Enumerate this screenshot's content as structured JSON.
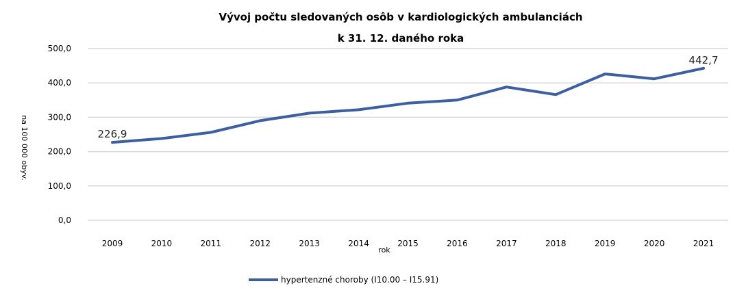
{
  "chart_data": {
    "type": "line",
    "title": [
      "Vývoj počtu sledovaných osôb v kardiologických ambulanciách",
      "k 31. 12. daného roka"
    ],
    "xlabel": "rok",
    "ylabel": "na 100 000 obyv.",
    "ylim": [
      0,
      500
    ],
    "y_ticks": [
      "0,0",
      "100,0",
      "200,0",
      "300,0",
      "400,0",
      "500,0"
    ],
    "categories": [
      "2009",
      "2010",
      "2011",
      "2012",
      "2013",
      "2014",
      "2015",
      "2016",
      "2017",
      "2018",
      "2019",
      "2020",
      "2021"
    ],
    "series": [
      {
        "name": "hypertenzné choroby (I10.00 – I15.91)",
        "color": "#3a5ea8",
        "values": [
          226.9,
          238,
          256,
          290,
          312,
          322,
          341,
          350,
          388,
          366,
          426,
          412,
          442.7
        ]
      }
    ],
    "data_labels": [
      {
        "index": 0,
        "text": "226,9"
      },
      {
        "index": 12,
        "text": "442,7"
      }
    ],
    "grid": true,
    "legend_position": "bottom"
  }
}
